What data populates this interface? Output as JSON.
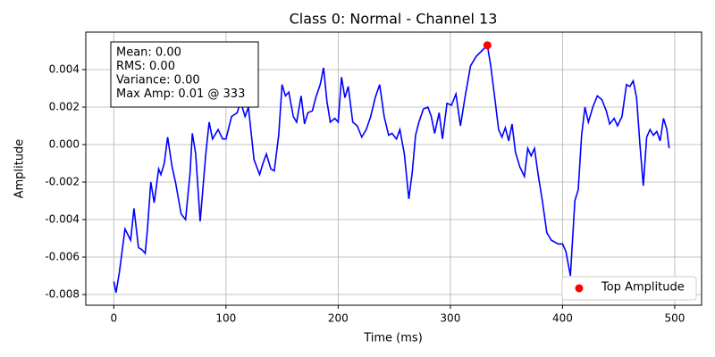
{
  "chart_data": {
    "type": "line",
    "title": "Class 0: Normal - Channel 13",
    "xlabel": "Time (ms)",
    "ylabel": "Amplitude",
    "xlim": [
      -24.95,
      523.95
    ],
    "ylim": [
      -0.00857,
      0.006
    ],
    "xticks": [
      0,
      100,
      200,
      300,
      400,
      500
    ],
    "yticks": [
      {
        "value": -0.008,
        "label": "-0.008"
      },
      {
        "value": -0.006,
        "label": "-0.006"
      },
      {
        "value": -0.004,
        "label": "-0.004"
      },
      {
        "value": -0.002,
        "label": "-0.002"
      },
      {
        "value": 0,
        "label": "0.000"
      },
      {
        "value": 0.002,
        "label": "0.002"
      },
      {
        "value": 0.004,
        "label": "0.004"
      }
    ],
    "grid": true,
    "legend": "lower right",
    "annotations": [
      "Mean: 0.00",
      "RMS: 0.00",
      "Variance: 0.00",
      "Max Amp: 0.01 @ 333"
    ],
    "x": [
      0,
      2,
      5,
      10,
      15,
      18,
      22,
      25,
      28,
      30,
      33,
      36,
      40,
      42,
      45,
      48,
      52,
      55,
      60,
      64,
      68,
      70,
      73,
      77,
      82,
      85,
      88,
      93,
      97,
      100,
      105,
      110,
      113,
      117,
      120,
      125,
      130,
      133,
      136,
      140,
      143,
      147,
      150,
      153,
      156,
      160,
      163,
      167,
      170,
      173,
      177,
      180,
      184,
      187,
      190,
      193,
      197,
      200,
      203,
      206,
      209,
      213,
      217,
      221,
      225,
      229,
      233,
      237,
      241,
      245,
      248,
      252,
      255,
      259,
      263,
      266,
      269,
      272,
      276,
      280,
      283,
      286,
      290,
      293,
      297,
      301,
      305,
      309,
      313,
      318,
      323,
      328,
      333,
      336,
      340,
      343,
      346,
      349,
      352,
      355,
      358,
      362,
      366,
      369,
      372,
      375,
      378,
      382,
      386,
      390,
      396,
      400,
      403,
      407,
      411,
      414,
      417,
      420,
      423,
      427,
      431,
      435,
      439,
      442,
      446,
      449,
      453,
      457,
      460,
      463,
      466,
      469,
      472,
      475,
      478,
      481,
      484,
      487,
      490,
      493,
      495
    ],
    "color": "#0000ff",
    "values": [
      -0.0073,
      -0.0079,
      -0.0068,
      -0.0045,
      -0.0051,
      -0.0034,
      -0.0055,
      -0.0056,
      -0.0058,
      -0.0045,
      -0.002,
      -0.0031,
      -0.0013,
      -0.0016,
      -0.001,
      0.0004,
      -0.0012,
      -0.002,
      -0.0037,
      -0.004,
      -0.0015,
      0.0006,
      -0.0005,
      -0.0041,
      -0.0005,
      0.0012,
      0.0003,
      0.0008,
      0.0003,
      0.0003,
      0.0015,
      0.0017,
      0.0023,
      0.0015,
      0.002,
      -0.0008,
      -0.0016,
      -0.001,
      -0.0005,
      -0.0013,
      -0.0014,
      0.0005,
      0.0032,
      0.0026,
      0.0028,
      0.0015,
      0.0012,
      0.0026,
      0.0011,
      0.0017,
      0.0018,
      0.0025,
      0.0032,
      0.0041,
      0.0023,
      0.0012,
      0.0014,
      0.0012,
      0.0036,
      0.0025,
      0.0031,
      0.0012,
      0.001,
      0.0004,
      0.0008,
      0.0015,
      0.0025,
      0.0032,
      0.0015,
      0.0005,
      0.0006,
      0.0003,
      0.0008,
      -0.0005,
      -0.0029,
      -0.0015,
      0.0005,
      0.0012,
      0.0019,
      0.002,
      0.0015,
      0.0006,
      0.0017,
      0.0003,
      0.0022,
      0.0021,
      0.0027,
      0.001,
      0.0025,
      0.0042,
      0.0047,
      0.005,
      0.0053,
      0.0042,
      0.0023,
      0.0008,
      0.0004,
      0.0009,
      0.0002,
      0.0011,
      -0.0004,
      -0.0012,
      -0.0017,
      -0.0002,
      -0.0006,
      -0.0002,
      -0.0015,
      -0.003,
      -0.0047,
      -0.0051,
      -0.0053,
      -0.0053,
      -0.0057,
      -0.007,
      -0.003,
      -0.0024,
      0.0005,
      0.002,
      0.0012,
      0.002,
      0.0026,
      0.0024,
      0.0018,
      0.0011,
      0.0014,
      0.001,
      0.0015,
      0.0032,
      0.0031,
      0.0034,
      0.0025,
      0,
      -0.0022,
      0.0004,
      0.0008,
      0.0005,
      0.0007,
      0.0002,
      0.0014,
      0.0008,
      -0.0002
    ],
    "highlight": {
      "name": "Top Amplitude",
      "x": 333,
      "y": 0.0053,
      "color": "#ff0000"
    }
  }
}
